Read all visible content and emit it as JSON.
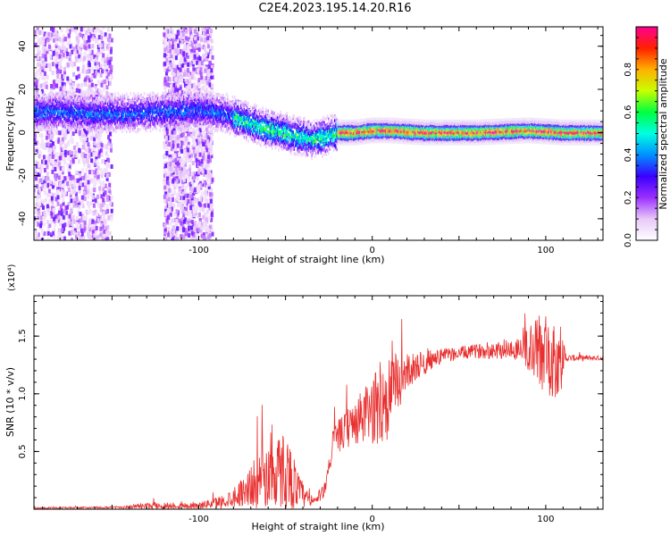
{
  "title": "C2E4.2023.195.14.20.R16",
  "chart_data": [
    {
      "type": "heatmap",
      "title": "",
      "xlabel": "Height of straight line (km)",
      "ylabel": "Frequency (Hz)",
      "xlim": [
        -195,
        133
      ],
      "ylim": [
        -50,
        49
      ],
      "xticks": [
        -100,
        0,
        100
      ],
      "yticks": [
        -40,
        -20,
        0,
        20,
        40
      ],
      "colorbar": {
        "label": "Normalized spectral amplitude",
        "range": [
          0,
          1
        ],
        "ticks": [
          0.0,
          0.2,
          0.4,
          0.6,
          0.8
        ],
        "colors": [
          "#ffffff",
          "#e8c8f8",
          "#9b30ff",
          "#3a00ff",
          "#0090ff",
          "#00ffe0",
          "#00ff40",
          "#c8ff00",
          "#ffb000",
          "#ff2000",
          "#ff0090"
        ]
      },
      "ridge": [
        {
          "x": -195,
          "y": 10
        },
        {
          "x": -180,
          "y": 10
        },
        {
          "x": -160,
          "y": 9
        },
        {
          "x": -140,
          "y": 9
        },
        {
          "x": -120,
          "y": 10
        },
        {
          "x": -100,
          "y": 11
        },
        {
          "x": -85,
          "y": 9
        },
        {
          "x": -75,
          "y": 6
        },
        {
          "x": -65,
          "y": 3
        },
        {
          "x": -55,
          "y": 1
        },
        {
          "x": -45,
          "y": -1
        },
        {
          "x": -35,
          "y": -3
        },
        {
          "x": -28,
          "y": -2
        },
        {
          "x": -20,
          "y": 0
        },
        {
          "x": -10,
          "y": 0
        },
        {
          "x": 0,
          "y": 1
        },
        {
          "x": 10,
          "y": 1
        },
        {
          "x": 30,
          "y": 0
        },
        {
          "x": 60,
          "y": 0
        },
        {
          "x": 90,
          "y": 1
        },
        {
          "x": 110,
          "y": 0
        },
        {
          "x": 133,
          "y": 0
        }
      ],
      "scatter_bands": [
        {
          "x_from": -195,
          "x_to": -150
        },
        {
          "x_from": -120,
          "x_to": -92
        }
      ]
    },
    {
      "type": "line",
      "title": "",
      "xlabel": "Height of straight line (km)",
      "ylabel": "SNR (10 * v/v)",
      "y_multiplier": "(x10⁴)",
      "xlim": [
        -195,
        133
      ],
      "ylim": [
        0,
        18500
      ],
      "xticks": [
        -100,
        0,
        100
      ],
      "yticks": [
        5000,
        10000,
        15000
      ],
      "ytick_labels": [
        "0.5",
        "1.0",
        "1.5"
      ],
      "color": "#e8302f",
      "envelope": [
        {
          "x": -195,
          "base": 100,
          "amp": 60
        },
        {
          "x": -150,
          "base": 150,
          "amp": 80
        },
        {
          "x": -125,
          "base": 300,
          "amp": 300
        },
        {
          "x": -100,
          "base": 300,
          "amp": 250
        },
        {
          "x": -85,
          "base": 700,
          "amp": 600
        },
        {
          "x": -75,
          "base": 1500,
          "amp": 1200
        },
        {
          "x": -65,
          "base": 2500,
          "amp": 2500
        },
        {
          "x": -50,
          "base": 3500,
          "amp": 3500
        },
        {
          "x": -42,
          "base": 1500,
          "amp": 1500
        },
        {
          "x": -35,
          "base": 500,
          "amp": 400
        },
        {
          "x": -28,
          "base": 1500,
          "amp": 600
        },
        {
          "x": -22,
          "base": 6000,
          "amp": 1200
        },
        {
          "x": -10,
          "base": 7500,
          "amp": 2000
        },
        {
          "x": 0,
          "base": 8500,
          "amp": 3000
        },
        {
          "x": 8,
          "base": 9500,
          "amp": 4000
        },
        {
          "x": 20,
          "base": 12000,
          "amp": 1500
        },
        {
          "x": 40,
          "base": 13300,
          "amp": 600
        },
        {
          "x": 60,
          "base": 13700,
          "amp": 600
        },
        {
          "x": 85,
          "base": 13900,
          "amp": 1000
        },
        {
          "x": 96,
          "base": 13600,
          "amp": 3500
        },
        {
          "x": 108,
          "base": 13000,
          "amp": 3500
        },
        {
          "x": 112,
          "base": 13100,
          "amp": 300
        },
        {
          "x": 133,
          "base": 13100,
          "amp": 200
        }
      ]
    }
  ]
}
